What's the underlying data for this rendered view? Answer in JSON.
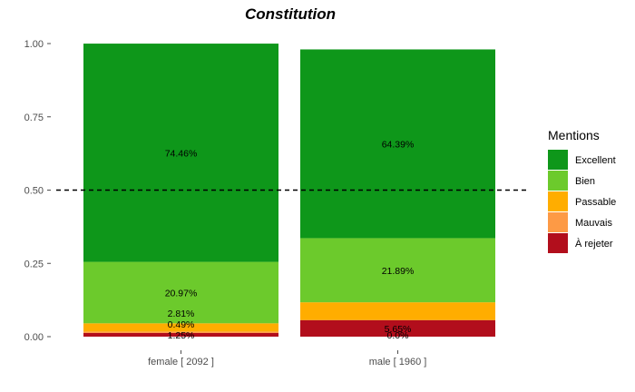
{
  "chart_data": {
    "type": "bar",
    "stacked": true,
    "normalized": true,
    "title": "Constitution",
    "xlabel": "",
    "ylabel": "",
    "ylim": [
      0,
      1
    ],
    "y_ticks": [
      "0.00",
      "0.25",
      "0.50",
      "0.75",
      "1.00"
    ],
    "categories": [
      "female [ 2092 ]",
      "male [ 1960 ]"
    ],
    "reference_line": {
      "y": 0.5,
      "style": "dashed"
    },
    "legend": {
      "title": "Mentions",
      "position": "right"
    },
    "series": [
      {
        "name": "À rejeter",
        "color": "#b20e1c",
        "values": [
          0.0125,
          0.0565
        ],
        "labels": [
          "1.25%",
          "5.65%"
        ]
      },
      {
        "name": "Mauvais",
        "color": "#fd9a45",
        "values": [
          0.0049,
          0.0
        ],
        "labels": [
          "0.49%",
          "0.0%"
        ]
      },
      {
        "name": "Passable",
        "color": "#ffad00",
        "values": [
          0.0281,
          0.0607
        ],
        "labels": [
          "2.81%",
          ""
        ]
      },
      {
        "name": "Bien",
        "color": "#6cca2c",
        "values": [
          0.2097,
          0.2189
        ],
        "labels": [
          "20.97%",
          "21.89%"
        ]
      },
      {
        "name": "Excellent",
        "color": "#0e971a",
        "values": [
          0.7446,
          0.6439
        ],
        "labels": [
          "74.46%",
          "64.39%"
        ]
      }
    ],
    "legend_order": [
      "Excellent",
      "Bien",
      "Passable",
      "Mauvais",
      "À rejeter"
    ]
  }
}
